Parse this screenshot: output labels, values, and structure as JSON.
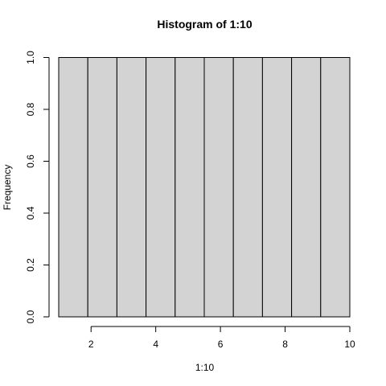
{
  "chart_data": {
    "type": "bar",
    "title": "Histogram of 1:10",
    "xlabel": "1:10",
    "ylabel": "Frequency",
    "bins": [
      [
        1.0,
        1.9
      ],
      [
        1.9,
        2.8
      ],
      [
        2.8,
        3.7
      ],
      [
        3.7,
        4.6
      ],
      [
        4.6,
        5.5
      ],
      [
        5.5,
        6.4
      ],
      [
        6.4,
        7.3
      ],
      [
        7.3,
        8.2
      ],
      [
        8.2,
        9.1
      ],
      [
        9.1,
        10.0
      ]
    ],
    "values": [
      1,
      1,
      1,
      1,
      1,
      1,
      1,
      1,
      1,
      1
    ],
    "xlim": [
      1,
      10
    ],
    "ylim": [
      0,
      1
    ],
    "x_ticks": [
      2,
      4,
      6,
      8,
      10
    ],
    "x_tick_labels": [
      "2",
      "4",
      "6",
      "8",
      "10"
    ],
    "y_ticks": [
      0,
      0.2,
      0.4,
      0.6,
      0.8,
      1
    ],
    "y_tick_labels": [
      "0.0",
      "0.2",
      "0.4",
      "0.6",
      "0.8",
      "1.0"
    ],
    "grid": false,
    "colors": {
      "bar_fill": "#d3d3d3",
      "bar_stroke": "#000000"
    }
  }
}
